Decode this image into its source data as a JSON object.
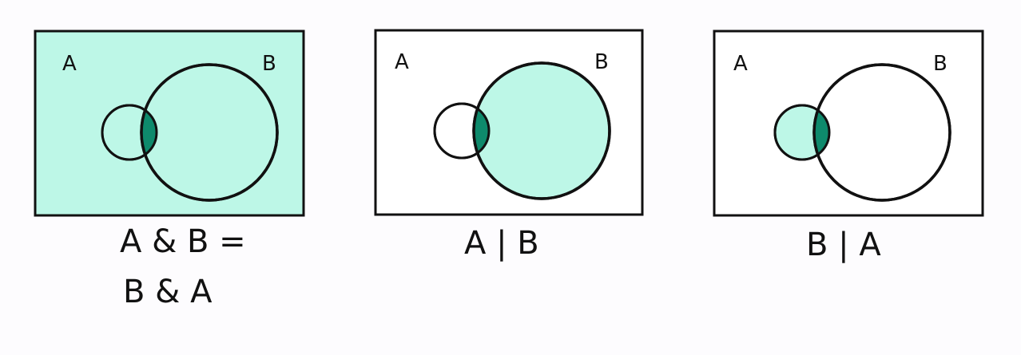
{
  "colors": {
    "background": "#fdfcfe",
    "light_fill": "#bdf7e7",
    "intersection_fill": "#0e8a6c",
    "stroke": "#111111",
    "unshaded": "#ffffff"
  },
  "diagrams": [
    {
      "label_a": "A",
      "label_b": "B",
      "shaded_regions": [
        "universe",
        "a",
        "b",
        "intersection"
      ],
      "caption_lines": [
        "A & B =",
        "B & A"
      ]
    },
    {
      "label_a": "A",
      "label_b": "B",
      "shaded_regions": [
        "b",
        "intersection"
      ],
      "caption_lines": [
        "A | B"
      ]
    },
    {
      "label_a": "A",
      "label_b": "B",
      "shaded_regions": [
        "a",
        "intersection"
      ],
      "caption_lines": [
        "B | A"
      ]
    }
  ]
}
